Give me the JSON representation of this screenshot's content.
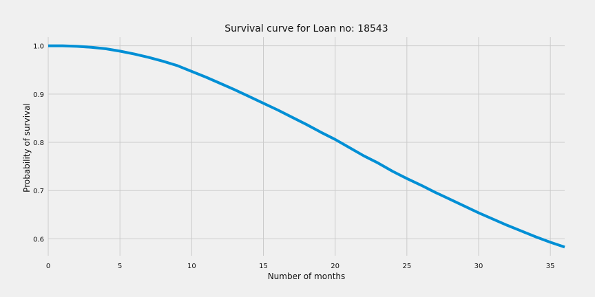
{
  "chart_data": {
    "type": "line",
    "title": "Survival curve for Loan no: 18543",
    "xlabel": "Number of months",
    "ylabel": "Probability of survival",
    "xlim": [
      0,
      36
    ],
    "ylim": [
      0.565,
      1.018
    ],
    "xticks": [
      0,
      5,
      10,
      15,
      20,
      25,
      30,
      35
    ],
    "yticks": [
      0.6,
      0.7,
      0.8,
      0.9,
      1.0
    ],
    "grid": true,
    "legend": "none",
    "colors": {
      "background": "#f0f0f0",
      "grid": "#cbcbcb",
      "line": "#008fd5"
    },
    "series": [
      {
        "x": [
          0,
          1,
          2,
          3,
          4,
          5,
          6,
          7,
          8,
          9,
          10,
          11,
          12,
          13,
          14,
          15,
          16,
          17,
          18,
          19,
          20,
          21,
          22,
          23,
          24,
          25,
          26,
          27,
          28,
          29,
          30,
          31,
          32,
          33,
          34,
          35,
          36
        ],
        "values": [
          1.0,
          1.0,
          0.999,
          0.997,
          0.994,
          0.989,
          0.983,
          0.976,
          0.968,
          0.959,
          0.947,
          0.935,
          0.922,
          0.909,
          0.895,
          0.881,
          0.867,
          0.852,
          0.837,
          0.821,
          0.806,
          0.789,
          0.772,
          0.757,
          0.74,
          0.725,
          0.711,
          0.696,
          0.682,
          0.668,
          0.654,
          0.641,
          0.628,
          0.616,
          0.604,
          0.593,
          0.583
        ]
      }
    ]
  }
}
